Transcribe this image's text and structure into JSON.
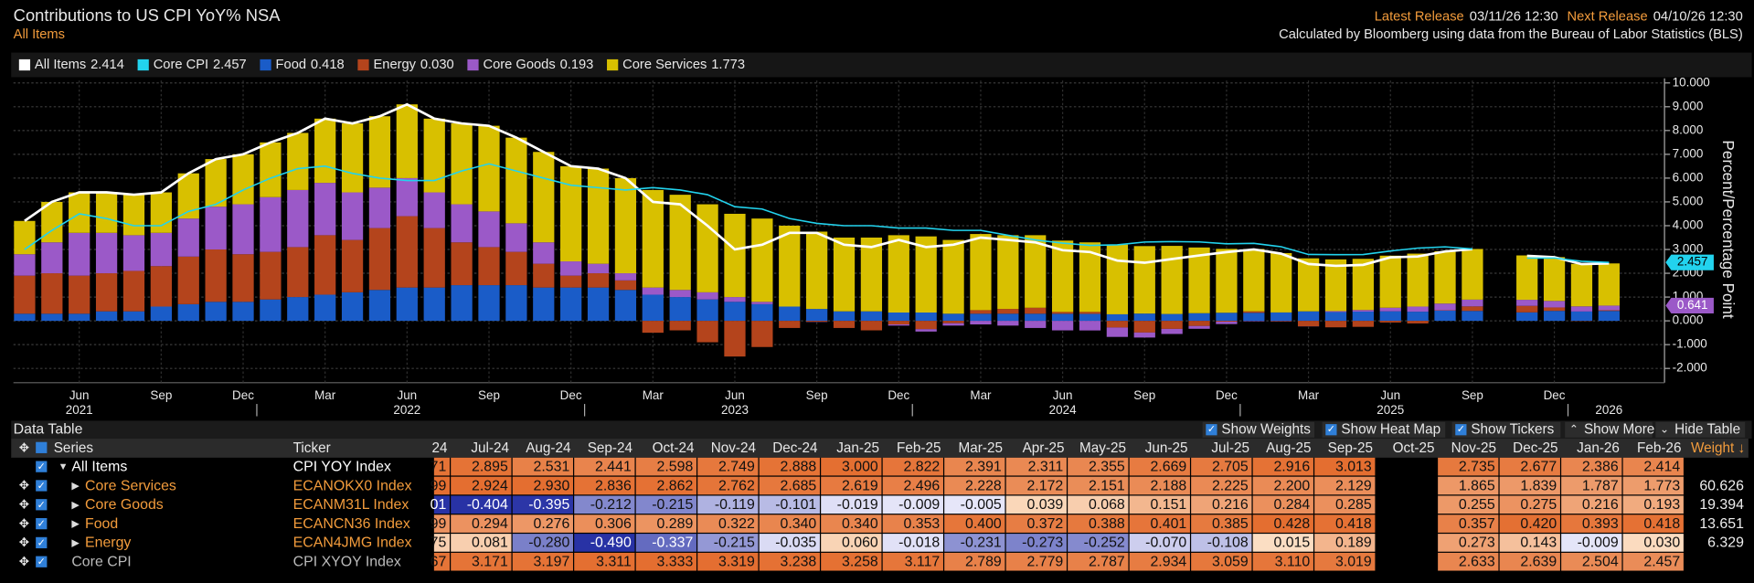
{
  "header": {
    "title": "Contributions to US CPI YoY% NSA",
    "subtitle": "All Items",
    "latest_release_label": "Latest Release",
    "latest_release": "03/11/26 12:30",
    "next_release_label": "Next Release",
    "next_release": "04/10/26 12:30",
    "source": "Calculated by Bloomberg using data from the Bureau of Labor Statistics (BLS)"
  },
  "chart_data": {
    "type": "bar",
    "stacked": true,
    "grid": true,
    "y_label": "Percent/Percentage Point",
    "categories": [
      null,
      null,
      "Jun",
      null,
      null,
      "Sep",
      null,
      null,
      "Dec",
      null,
      null,
      "Mar",
      null,
      null,
      "Jun",
      null,
      null,
      "Sep",
      null,
      null,
      "Dec",
      null,
      null,
      "Mar",
      null,
      null,
      "Jun",
      null,
      null,
      "Sep",
      null,
      null,
      "Dec",
      null,
      null,
      "Mar",
      null,
      null,
      "Jun",
      null,
      null,
      "Sep",
      null,
      null,
      "Dec",
      null,
      null,
      "Mar",
      null,
      null,
      "Jun",
      null,
      null,
      "Sep",
      null,
      null,
      "Dec",
      null,
      null
    ],
    "year_labels": [
      null,
      null,
      "2021",
      null,
      null,
      null,
      null,
      null,
      null,
      null,
      null,
      null,
      null,
      null,
      "2022",
      null,
      null,
      null,
      null,
      null,
      null,
      null,
      null,
      null,
      null,
      null,
      "2023",
      null,
      null,
      null,
      null,
      null,
      null,
      null,
      null,
      null,
      null,
      null,
      "2024",
      null,
      null,
      null,
      null,
      null,
      null,
      null,
      null,
      null,
      null,
      null,
      "2025",
      null,
      null,
      null,
      null,
      null,
      null,
      null,
      "2026"
    ],
    "ylim": [
      -2.6,
      10.1
    ],
    "yticks": [
      {
        "value": -2,
        "label": "-2.000"
      },
      {
        "value": -1,
        "label": "-1.000"
      },
      {
        "value": 0,
        "label": "0.000"
      },
      {
        "value": 1,
        "label": "1.000"
      },
      {
        "value": 2,
        "label": "2.000"
      },
      {
        "value": 3,
        "label": "3.000"
      },
      {
        "value": 4,
        "label": "4.000"
      },
      {
        "value": 5,
        "label": "5.000"
      },
      {
        "value": 6,
        "label": "6.000"
      },
      {
        "value": 7,
        "label": "7.000"
      },
      {
        "value": 8,
        "label": "8.000"
      },
      {
        "value": 9,
        "label": "9.000"
      },
      {
        "value": 10,
        "label": "10.000"
      }
    ],
    "series": [
      {
        "name": "All Items",
        "legend_value": "2.414",
        "type": "line",
        "color": "#ffffff",
        "values": [
          4.2,
          5.0,
          5.4,
          5.4,
          5.3,
          5.4,
          6.2,
          6.8,
          7.0,
          7.5,
          7.9,
          8.5,
          8.3,
          8.6,
          9.1,
          8.5,
          8.3,
          8.2,
          7.7,
          7.1,
          6.5,
          6.4,
          6.0,
          5.0,
          4.9,
          4.0,
          3.0,
          3.2,
          3.7,
          3.7,
          3.2,
          3.1,
          3.4,
          3.1,
          3.2,
          3.5,
          3.4,
          3.3,
          2.971,
          2.895,
          2.531,
          2.441,
          2.598,
          2.749,
          2.888,
          3.0,
          2.822,
          2.391,
          2.311,
          2.355,
          2.669,
          2.705,
          2.916,
          3.013,
          null,
          2.735,
          2.677,
          2.386,
          2.414
        ]
      },
      {
        "name": "Core CPI",
        "legend_value": "2.457",
        "type": "line",
        "color": "#22d3ee",
        "values": [
          3.0,
          3.8,
          4.5,
          4.3,
          4.0,
          4.0,
          4.6,
          4.9,
          5.5,
          6.0,
          6.4,
          6.5,
          6.2,
          6.0,
          5.9,
          5.9,
          6.3,
          6.6,
          6.3,
          6.0,
          5.7,
          5.6,
          5.5,
          5.6,
          5.5,
          5.3,
          4.8,
          4.7,
          4.3,
          4.1,
          4.0,
          4.0,
          3.9,
          3.9,
          3.8,
          3.8,
          3.6,
          3.4,
          3.267,
          3.171,
          3.197,
          3.311,
          3.333,
          3.319,
          3.238,
          3.258,
          3.117,
          2.789,
          2.779,
          2.787,
          2.934,
          3.059,
          3.11,
          3.019,
          null,
          2.633,
          2.639,
          2.504,
          2.457
        ]
      },
      {
        "name": "Food",
        "legend_value": "0.418",
        "type": "bar",
        "color": "#1a5cc8",
        "values": [
          0.3,
          0.3,
          0.3,
          0.4,
          0.4,
          0.6,
          0.7,
          0.8,
          0.8,
          0.9,
          1.0,
          1.1,
          1.2,
          1.3,
          1.4,
          1.4,
          1.5,
          1.5,
          1.5,
          1.4,
          1.4,
          1.4,
          1.3,
          1.1,
          1.0,
          0.9,
          0.8,
          0.7,
          0.6,
          0.5,
          0.4,
          0.4,
          0.35,
          0.35,
          0.3,
          0.3,
          0.3,
          0.3,
          0.299,
          0.294,
          0.276,
          0.306,
          0.289,
          0.322,
          0.34,
          0.34,
          0.353,
          0.4,
          0.372,
          0.388,
          0.401,
          0.385,
          0.428,
          0.418,
          null,
          0.357,
          0.42,
          0.393,
          0.418
        ]
      },
      {
        "name": "Energy",
        "legend_value": "0.030",
        "type": "bar",
        "color": "#b4441c",
        "values": [
          1.6,
          1.7,
          1.6,
          1.6,
          1.7,
          1.7,
          2.0,
          2.2,
          2.0,
          2.0,
          2.1,
          2.5,
          2.2,
          2.6,
          3.0,
          2.5,
          1.8,
          1.6,
          1.4,
          1.0,
          0.5,
          0.6,
          0.4,
          -0.5,
          -0.4,
          -0.9,
          -1.5,
          -1.1,
          -0.3,
          -0.04,
          -0.3,
          -0.4,
          -0.15,
          -0.35,
          -0.1,
          0.15,
          0.2,
          0.25,
          0.075,
          0.081,
          -0.28,
          -0.49,
          -0.337,
          -0.215,
          -0.035,
          0.06,
          -0.018,
          -0.231,
          -0.273,
          -0.252,
          -0.07,
          -0.108,
          0.015,
          0.189,
          null,
          0.273,
          0.143,
          -0.009,
          0.03
        ]
      },
      {
        "name": "Core Goods",
        "legend_value": "0.193",
        "type": "bar",
        "color": "#9b59c8",
        "values": [
          0.9,
          1.3,
          1.8,
          1.7,
          1.5,
          1.4,
          1.6,
          1.8,
          2.1,
          2.3,
          2.4,
          2.2,
          2.0,
          1.7,
          1.6,
          1.5,
          1.6,
          1.5,
          1.2,
          0.9,
          0.6,
          0.4,
          0.3,
          0.3,
          0.3,
          0.3,
          0.2,
          0.1,
          0.0,
          -0.01,
          0.0,
          0.0,
          -0.05,
          -0.1,
          -0.1,
          -0.15,
          -0.2,
          -0.3,
          -0.401,
          -0.404,
          -0.395,
          -0.212,
          -0.215,
          -0.119,
          -0.101,
          -0.019,
          -0.009,
          -0.005,
          0.039,
          0.068,
          0.151,
          0.216,
          0.284,
          0.285,
          null,
          0.255,
          0.275,
          0.216,
          0.193
        ]
      },
      {
        "name": "Core Services",
        "legend_value": "1.773",
        "type": "bar",
        "color": "#d8c000",
        "values": [
          1.4,
          1.7,
          1.7,
          1.7,
          1.7,
          1.7,
          1.9,
          2.0,
          2.1,
          2.3,
          2.4,
          2.7,
          2.9,
          3.0,
          3.1,
          3.1,
          3.4,
          3.6,
          3.6,
          3.8,
          4.0,
          4.0,
          4.0,
          4.1,
          4.0,
          3.7,
          3.5,
          3.5,
          3.4,
          3.25,
          3.1,
          3.1,
          3.25,
          3.2,
          3.1,
          3.2,
          3.1,
          3.05,
          2.999,
          2.924,
          2.93,
          2.836,
          2.862,
          2.762,
          2.685,
          2.619,
          2.496,
          2.228,
          2.172,
          2.151,
          2.188,
          2.225,
          2.2,
          2.129,
          null,
          1.865,
          1.839,
          1.787,
          1.773
        ]
      }
    ],
    "end_labels": [
      {
        "value": 2.457,
        "label": "2.457",
        "color": "#22d3ee"
      },
      {
        "value": 0.641,
        "label": "0.641",
        "color": "#9b59c8"
      }
    ]
  },
  "table": {
    "title": "Data Table",
    "controls": [
      "Show Weights",
      "Show Heat Map",
      "Show Tickers",
      "Show More",
      "Hide Table"
    ],
    "columns": [
      "Series",
      "Ticker",
      "24",
      "Jul-24",
      "Aug-24",
      "Sep-24",
      "Oct-24",
      "Nov-24",
      "Dec-24",
      "Jan-25",
      "Feb-25",
      "Mar-25",
      "Apr-25",
      "May-25",
      "Jun-25",
      "Jul-25",
      "Aug-25",
      "Sep-25",
      "Oct-25",
      "Nov-25",
      "Dec-25",
      "Jan-26",
      "Feb-26",
      "Weight ↓"
    ],
    "rows": [
      [
        "All Items",
        "CPI YOY Index",
        "71",
        "2.895",
        "2.531",
        "2.441",
        "2.598",
        "2.749",
        "2.888",
        "3.000",
        "2.822",
        "2.391",
        "2.311",
        "2.355",
        "2.669",
        "2.705",
        "2.916",
        "3.013",
        null,
        "2.735",
        "2.677",
        "2.386",
        "2.414",
        null
      ],
      [
        "Core Services",
        "ECANOKX0 Index",
        "99",
        "2.924",
        "2.930",
        "2.836",
        "2.862",
        "2.762",
        "2.685",
        "2.619",
        "2.496",
        "2.228",
        "2.172",
        "2.151",
        "2.188",
        "2.225",
        "2.200",
        "2.129",
        null,
        "1.865",
        "1.839",
        "1.787",
        "1.773",
        "60.626"
      ],
      [
        "Core Goods",
        "ECANM31L Index",
        "01",
        "-0.404",
        "-0.395",
        "-0.212",
        "-0.215",
        "-0.119",
        "-0.101",
        "-0.019",
        "-0.009",
        "-0.005",
        "0.039",
        "0.068",
        "0.151",
        "0.216",
        "0.284",
        "0.285",
        null,
        "0.255",
        "0.275",
        "0.216",
        "0.193",
        "19.394"
      ],
      [
        "Food",
        "ECANCN36 Index",
        "99",
        "0.294",
        "0.276",
        "0.306",
        "0.289",
        "0.322",
        "0.340",
        "0.340",
        "0.353",
        "0.400",
        "0.372",
        "0.388",
        "0.401",
        "0.385",
        "0.428",
        "0.418",
        null,
        "0.357",
        "0.420",
        "0.393",
        "0.418",
        "13.651"
      ],
      [
        "Energy",
        "ECAN4JMG Index",
        "75",
        "0.081",
        "-0.280",
        "-0.490",
        "-0.337",
        "-0.215",
        "-0.035",
        "0.060",
        "-0.018",
        "-0.231",
        "-0.273",
        "-0.252",
        "-0.070",
        "-0.108",
        "0.015",
        "0.189",
        null,
        "0.273",
        "0.143",
        "-0.009",
        "0.030",
        "6.329"
      ],
      [
        "Core CPI",
        "CPI XYOY Index",
        "67",
        "3.171",
        "3.197",
        "3.311",
        "3.333",
        "3.319",
        "3.238",
        "3.258",
        "3.117",
        "2.789",
        "2.779",
        "2.787",
        "2.934",
        "3.059",
        "3.110",
        "3.019",
        null,
        "2.633",
        "2.639",
        "2.504",
        "2.457",
        null
      ]
    ]
  }
}
